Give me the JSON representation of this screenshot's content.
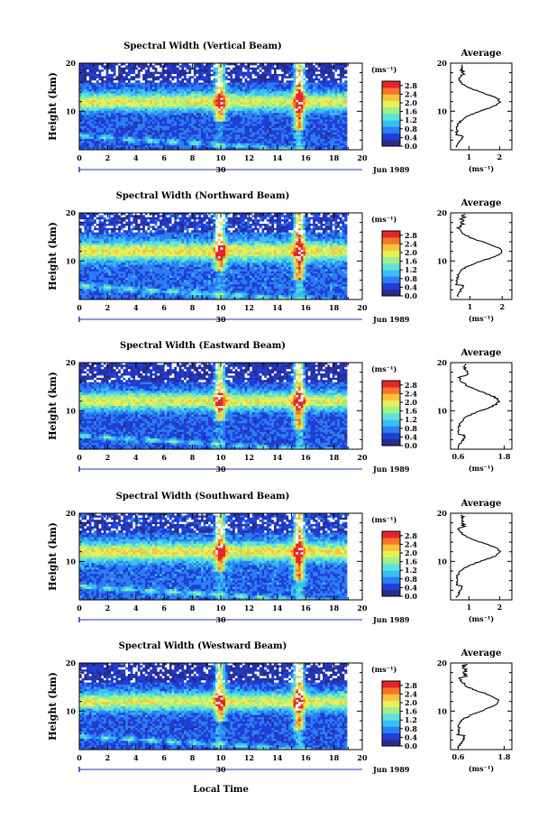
{
  "chart_data": {
    "type": "heatmap",
    "panels": [
      {
        "title": "Spectral Width (Vertical Beam)",
        "avg_title": "Average",
        "avg_xticks": [
          "1",
          "2"
        ],
        "avg_xrange": [
          0.4,
          2.4
        ]
      },
      {
        "title": "Spectral Width (Northward Beam)",
        "avg_title": "Average",
        "avg_xticks": [
          "1",
          "2"
        ],
        "avg_xrange": [
          0.4,
          2.3
        ]
      },
      {
        "title": "Spectral Width (Eastward Beam)",
        "avg_title": "Average",
        "avg_xticks": [
          "0.6",
          "1.8"
        ],
        "avg_xrange": [
          0.4,
          2.0
        ]
      },
      {
        "title": "Spectral Width (Southward Beam)",
        "avg_title": "Average",
        "avg_xticks": [
          "1",
          "2"
        ],
        "avg_xrange": [
          0.4,
          2.4
        ]
      },
      {
        "title": "Spectral Width (Westward Beam)",
        "avg_title": "Average",
        "avg_xticks": [
          "0.6",
          "1.8"
        ],
        "avg_xrange": [
          0.4,
          2.0
        ]
      }
    ],
    "ylabel": "Height (km)",
    "yticks": [
      "10",
      "20"
    ],
    "ylim": [
      2,
      20
    ],
    "xticks": [
      "0",
      "2",
      "4",
      "6",
      "8",
      "10",
      "12",
      "14",
      "16",
      "18",
      "20"
    ],
    "xlim": [
      0,
      20
    ],
    "date_marker": "30",
    "date_label": "Jun 1989",
    "xlabel": "Local Time",
    "unit_label": "(ms⁻¹)",
    "avg_xlabel": "(ms⁻¹)",
    "colorbar_ticks": [
      "0.0",
      "0.4",
      "0.8",
      "1.2",
      "1.6",
      "2.0",
      "2.4",
      "2.8"
    ],
    "colorbar_range": [
      0.0,
      3.0
    ],
    "colors": {
      "scale": [
        "#2b2b8c",
        "#1f3fd6",
        "#2c7ef2",
        "#38bff5",
        "#5fe3d8",
        "#9ff08a",
        "#e7f05a",
        "#f9c23a",
        "#f6752a",
        "#e3262a"
      ]
    }
  }
}
